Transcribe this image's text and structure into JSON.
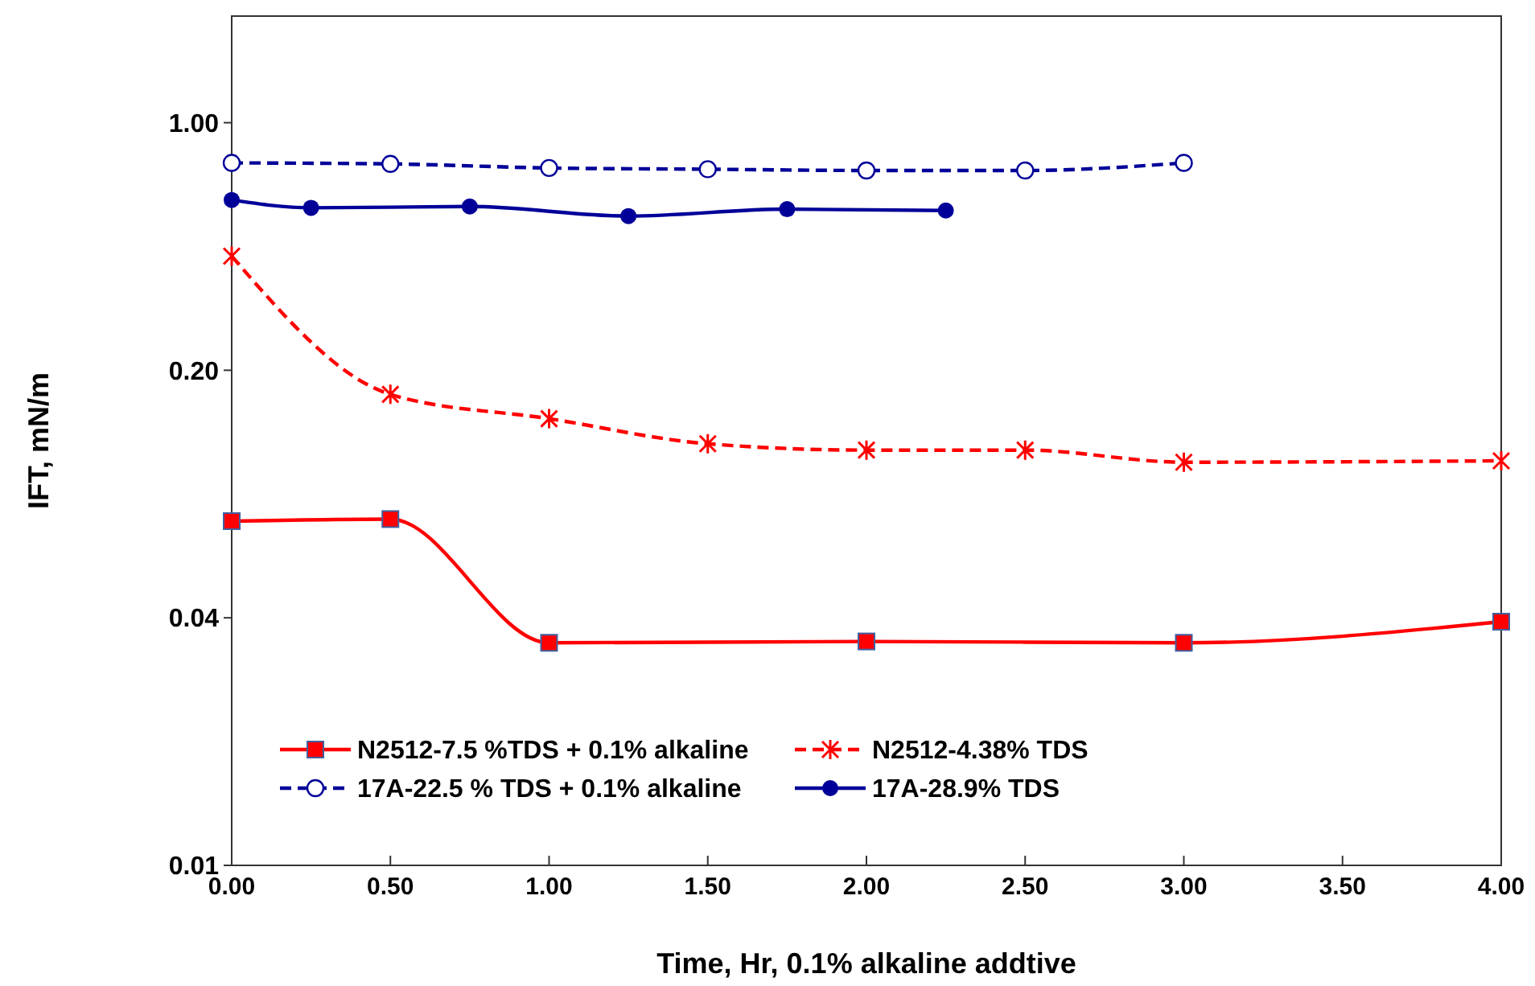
{
  "chart_data": {
    "type": "line",
    "xlabel": "Time, Hr, 0.1% alkaline addtive",
    "ylabel": "IFT, mN/m",
    "log": "y",
    "xlim": [
      0,
      4
    ],
    "xticks": [
      {
        "value": 0,
        "label": "0.00"
      },
      {
        "value": 0.5,
        "label": "0.50"
      },
      {
        "value": 1,
        "label": "1.00"
      },
      {
        "value": 1.5,
        "label": "1.50"
      },
      {
        "value": 2,
        "label": "2.00"
      },
      {
        "value": 2.5,
        "label": "2.50"
      },
      {
        "value": 3,
        "label": "3.00"
      },
      {
        "value": 3.5,
        "label": "3.50"
      },
      {
        "value": 4,
        "label": "4.00"
      }
    ],
    "ylim": [
      0.008,
      2
    ],
    "yticks": [
      {
        "value": 0.008,
        "label": "0.01"
      },
      {
        "value": 0.04,
        "label": "0.04"
      },
      {
        "value": 0.2,
        "label": "0.20"
      },
      {
        "value": 1,
        "label": "1.00"
      }
    ],
    "grid": false,
    "legend": "bottom left",
    "series": [
      {
        "name": "N2512-7.5 %TDS + 0.1% alkaline",
        "color": "#ff0000",
        "marker": "square",
        "line_style": "solid",
        "x": [
          0,
          0.5,
          1,
          2,
          3,
          4
        ],
        "values": [
          0.075,
          0.076,
          0.034,
          0.0343,
          0.034,
          0.039
        ]
      },
      {
        "name": "N2512-4.38% TDS",
        "color": "#ff0000",
        "marker": "cross",
        "line_style": "dashed",
        "x": [
          0,
          0.5,
          1,
          1.5,
          2,
          2.5,
          3,
          4
        ],
        "values": [
          0.42,
          0.171,
          0.146,
          0.124,
          0.119,
          0.119,
          0.11,
          0.111
        ]
      },
      {
        "name": "17A-22.5 % TDS + 0.1% alkaline",
        "color": "#000099",
        "marker": "circle",
        "line_style": "dashed",
        "x": [
          0,
          0.5,
          1,
          1.5,
          2,
          2.5,
          3
        ],
        "values": [
          0.77,
          0.765,
          0.745,
          0.739,
          0.733,
          0.733,
          0.77
        ]
      },
      {
        "name": "17A-28.9% TDS",
        "color": "#000099",
        "marker": "circle",
        "line_style": "solid",
        "x": [
          0,
          0.25,
          0.75,
          1.25,
          1.75,
          2.25
        ],
        "values": [
          0.605,
          0.575,
          0.58,
          0.545,
          0.57,
          0.565
        ]
      }
    ]
  }
}
